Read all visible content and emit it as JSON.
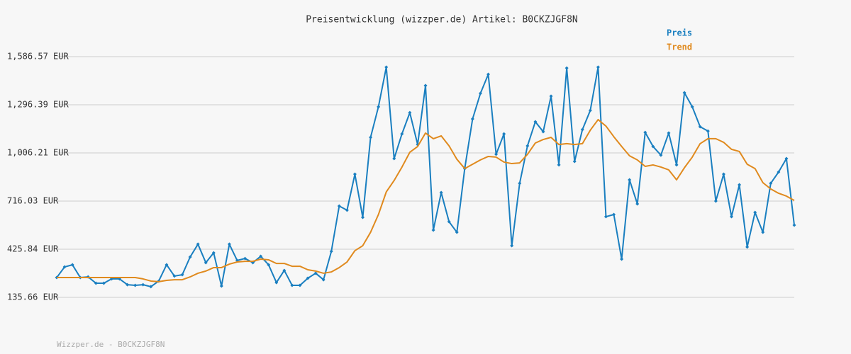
{
  "chart_data": {
    "type": "line",
    "title": "Preisentwicklung (wizzper.de) Artikel: B0CKZJGF8N",
    "footer": "Wizzper.de - B0CKZJGF8N",
    "legend": "top-right",
    "grid": true,
    "categories": [
      null,
      null,
      null,
      null,
      null,
      null,
      null,
      null,
      null,
      null,
      null,
      null,
      null,
      null,
      null,
      null,
      null,
      null,
      null,
      null,
      null,
      null,
      null,
      null,
      null,
      null,
      null,
      null,
      null,
      null,
      null,
      null,
      null,
      null,
      null,
      null,
      null,
      null,
      null,
      null,
      null,
      null,
      null,
      null,
      null,
      null,
      null,
      null,
      null,
      null,
      null,
      null,
      null,
      null,
      null,
      null,
      null,
      null,
      null,
      null,
      null,
      null,
      null,
      null,
      null,
      null,
      null,
      null,
      null,
      null,
      null,
      null,
      null,
      null,
      null,
      null,
      null,
      null,
      null,
      null,
      null,
      null,
      null,
      null,
      null,
      null,
      null,
      null,
      null,
      null,
      null,
      null,
      null,
      null,
      null
    ],
    "ylim": [
      135.66,
      1586.57
    ],
    "yticks": [
      {
        "value": 135.66,
        "label": "135.66 EUR"
      },
      {
        "value": 425.84,
        "label": "425.84 EUR"
      },
      {
        "value": 716.03,
        "label": "716.03 EUR"
      },
      {
        "value": 1006.21,
        "label": "1,006.21 EUR"
      },
      {
        "value": 1296.39,
        "label": "1,296.39 EUR"
      },
      {
        "value": 1586.57,
        "label": "1,586.57 EUR"
      }
    ],
    "series": [
      {
        "name": "Preis",
        "color": "#1a7fc0",
        "markers": true,
        "values": [
          255,
          319,
          332,
          255,
          259,
          221,
          221,
          247,
          247,
          212,
          208,
          212,
          200,
          234,
          332,
          264,
          272,
          379,
          456,
          345,
          404,
          204,
          456,
          358,
          370,
          345,
          383,
          332,
          225,
          298,
          208,
          208,
          251,
          281,
          242,
          413,
          686,
          661,
          878,
          618,
          1100,
          1284,
          1523,
          972,
          1121,
          1249,
          1057,
          1412,
          541,
          767,
          592,
          528,
          912,
          1211,
          1365,
          1480,
          998,
          1121,
          447,
          823,
          1049,
          1194,
          1134,
          1348,
          934,
          1518,
          955,
          1147,
          1262,
          1523,
          622,
          635,
          366,
          844,
          699,
          1130,
          1045,
          993,
          1126,
          934,
          1369,
          1284,
          1164,
          1138,
          716,
          878,
          622,
          814,
          439,
          648,
          528,
          823,
          891,
          972,
          571
        ]
      },
      {
        "name": "Trend",
        "color": "#e08a1e",
        "markers": false,
        "values": [
          255,
          255,
          255,
          255,
          255,
          255,
          255,
          255,
          255,
          255,
          255,
          247,
          234,
          230,
          238,
          242,
          242,
          259,
          281,
          294,
          315,
          315,
          336,
          349,
          353,
          353,
          366,
          362,
          340,
          340,
          323,
          323,
          302,
          294,
          281,
          289,
          315,
          349,
          417,
          447,
          528,
          635,
          771,
          840,
          921,
          1010,
          1045,
          1126,
          1092,
          1109,
          1049,
          968,
          912,
          938,
          964,
          985,
          981,
          951,
          942,
          946,
          998,
          1066,
          1087,
          1100,
          1057,
          1062,
          1057,
          1062,
          1143,
          1207,
          1168,
          1104,
          1045,
          989,
          964,
          925,
          934,
          921,
          904,
          844,
          917,
          981,
          1062,
          1092,
          1092,
          1070,
          1028,
          1015,
          938,
          912,
          827,
          789,
          763,
          746,
          720
        ]
      }
    ]
  }
}
